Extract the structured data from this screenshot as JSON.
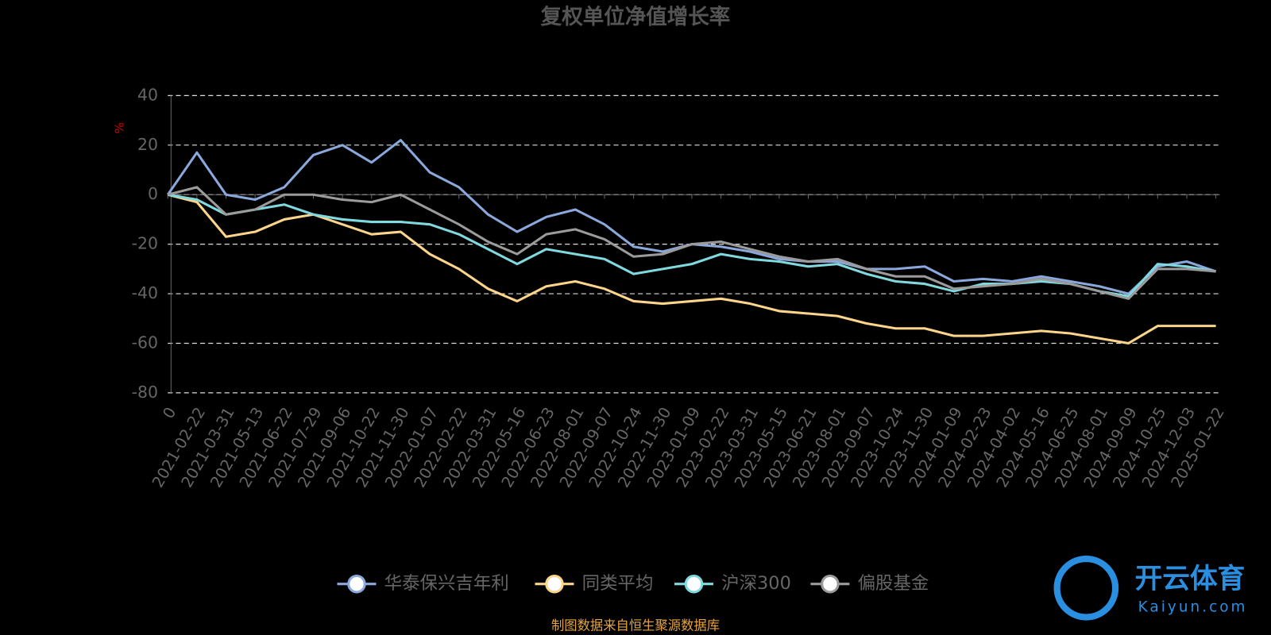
{
  "chart_data": {
    "type": "line",
    "title": "复权单位净值增长率",
    "y_label": "%",
    "categories": [
      "0",
      "2021-02-22",
      "2021-03-31",
      "2021-05-13",
      "2021-06-22",
      "2021-07-29",
      "2021-09-06",
      "2021-10-22",
      "2021-11-30",
      "2022-01-07",
      "2022-02-22",
      "2022-03-31",
      "2022-05-16",
      "2022-06-23",
      "2022-08-01",
      "2022-09-07",
      "2022-10-24",
      "2022-11-30",
      "2023-01-09",
      "2023-02-22",
      "2023-03-31",
      "2023-05-15",
      "2023-06-21",
      "2023-08-01",
      "2023-09-07",
      "2023-10-24",
      "2023-11-30",
      "2024-01-09",
      "2024-02-23",
      "2024-04-02",
      "2024-05-16",
      "2024-06-25",
      "2024-08-01",
      "2024-09-09",
      "2024-10-25",
      "2024-12-03",
      "2025-01-22"
    ],
    "series": [
      {
        "name": "华泰保兴吉年利",
        "color": "#8ba8dc",
        "values": [
          0,
          17,
          0,
          -2,
          3,
          16,
          20,
          13,
          22,
          9,
          3,
          -8,
          -15,
          -9,
          -6,
          -12,
          -21,
          -23,
          -20,
          -21,
          -23,
          -26,
          -27,
          -27,
          -30,
          -30,
          -29,
          -35,
          -34,
          -35,
          -33,
          -35,
          -37,
          -40,
          -29,
          -27,
          -31
        ]
      },
      {
        "name": "同类平均",
        "color": "#fcd48a",
        "values": [
          0,
          -3,
          -17,
          -15,
          -10,
          -8,
          -12,
          -16,
          -15,
          -24,
          -30,
          -38,
          -43,
          -37,
          -35,
          -38,
          -43,
          -44,
          -43,
          -42,
          -44,
          -47,
          -48,
          -49,
          -52,
          -54,
          -54,
          -57,
          -57,
          -56,
          -55,
          -56,
          -58,
          -60,
          -53,
          -53,
          -53
        ]
      },
      {
        "name": "沪深300",
        "color": "#7fd9df",
        "values": [
          0,
          -2,
          -8,
          -6,
          -4,
          -8,
          -10,
          -11,
          -11,
          -12,
          -16,
          -22,
          -28,
          -22,
          -24,
          -26,
          -32,
          -30,
          -28,
          -24,
          -26,
          -27,
          -29,
          -28,
          -32,
          -35,
          -36,
          -39,
          -36,
          -36,
          -35,
          -36,
          -39,
          -41,
          -28,
          -29,
          -31
        ]
      },
      {
        "name": "偏股基金",
        "color": "#9b9b9b",
        "values": [
          0,
          3,
          -8,
          -6,
          0,
          0,
          -2,
          -3,
          0,
          -6,
          -12,
          -19,
          -24,
          -16,
          -14,
          -18,
          -25,
          -24,
          -20,
          -19,
          -22,
          -25,
          -27,
          -26,
          -30,
          -33,
          -33,
          -38,
          -37,
          -36,
          -34,
          -36,
          -39,
          -42,
          -30,
          -30,
          -31
        ]
      }
    ],
    "ylim": [
      -80,
      40
    ],
    "yticks": [
      -80,
      -60,
      -40,
      -20,
      0,
      20,
      40
    ],
    "grid": true,
    "source": "制图数据来自恒生聚源数据库",
    "watermark": {
      "brand": "开云体育",
      "site": "Kaiyun.com"
    }
  }
}
